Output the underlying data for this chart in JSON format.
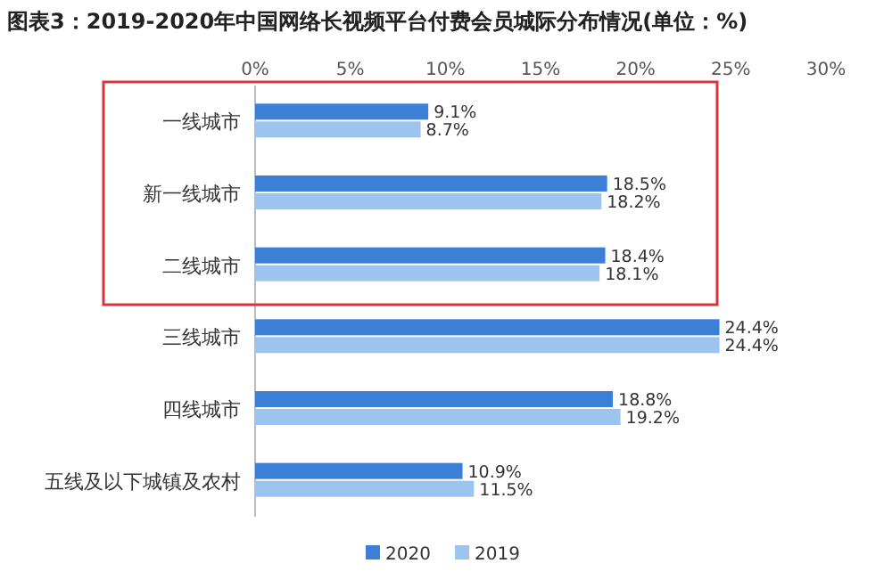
{
  "chart_data": {
    "type": "bar",
    "orientation": "horizontal",
    "title": "图表3：2019-2020年中国网络长视频平台付费会员城际分布情况(单位：%)",
    "categories": [
      "一线城市",
      "新一线城市",
      "二线城市",
      "三线城市",
      "四线城市",
      "五线及以下城镇及农村"
    ],
    "series": [
      {
        "name": "2020",
        "color": "#3c7fd6",
        "values": [
          9.1,
          18.5,
          18.4,
          24.4,
          18.8,
          10.9
        ],
        "value_labels": [
          "9.1%",
          "18.5%",
          "18.4%",
          "24.4%",
          "18.8%",
          "10.9%"
        ]
      },
      {
        "name": "2019",
        "color": "#9dc3ef",
        "values": [
          8.7,
          18.2,
          18.1,
          24.4,
          19.2,
          11.5
        ],
        "value_labels": [
          "8.7%",
          "18.2%",
          "18.1%",
          "24.4%",
          "19.2%",
          "11.5%"
        ]
      }
    ],
    "xlim": [
      0,
      30
    ],
    "xticks": [
      {
        "value": 0,
        "label": "0%"
      },
      {
        "value": 5,
        "label": "5%"
      },
      {
        "value": 10,
        "label": "10%"
      },
      {
        "value": 15,
        "label": "15%"
      },
      {
        "value": 20,
        "label": "20%"
      },
      {
        "value": 25,
        "label": "25%"
      },
      {
        "value": 30,
        "label": "30%"
      }
    ],
    "legend": "bottom",
    "grid": false
  }
}
